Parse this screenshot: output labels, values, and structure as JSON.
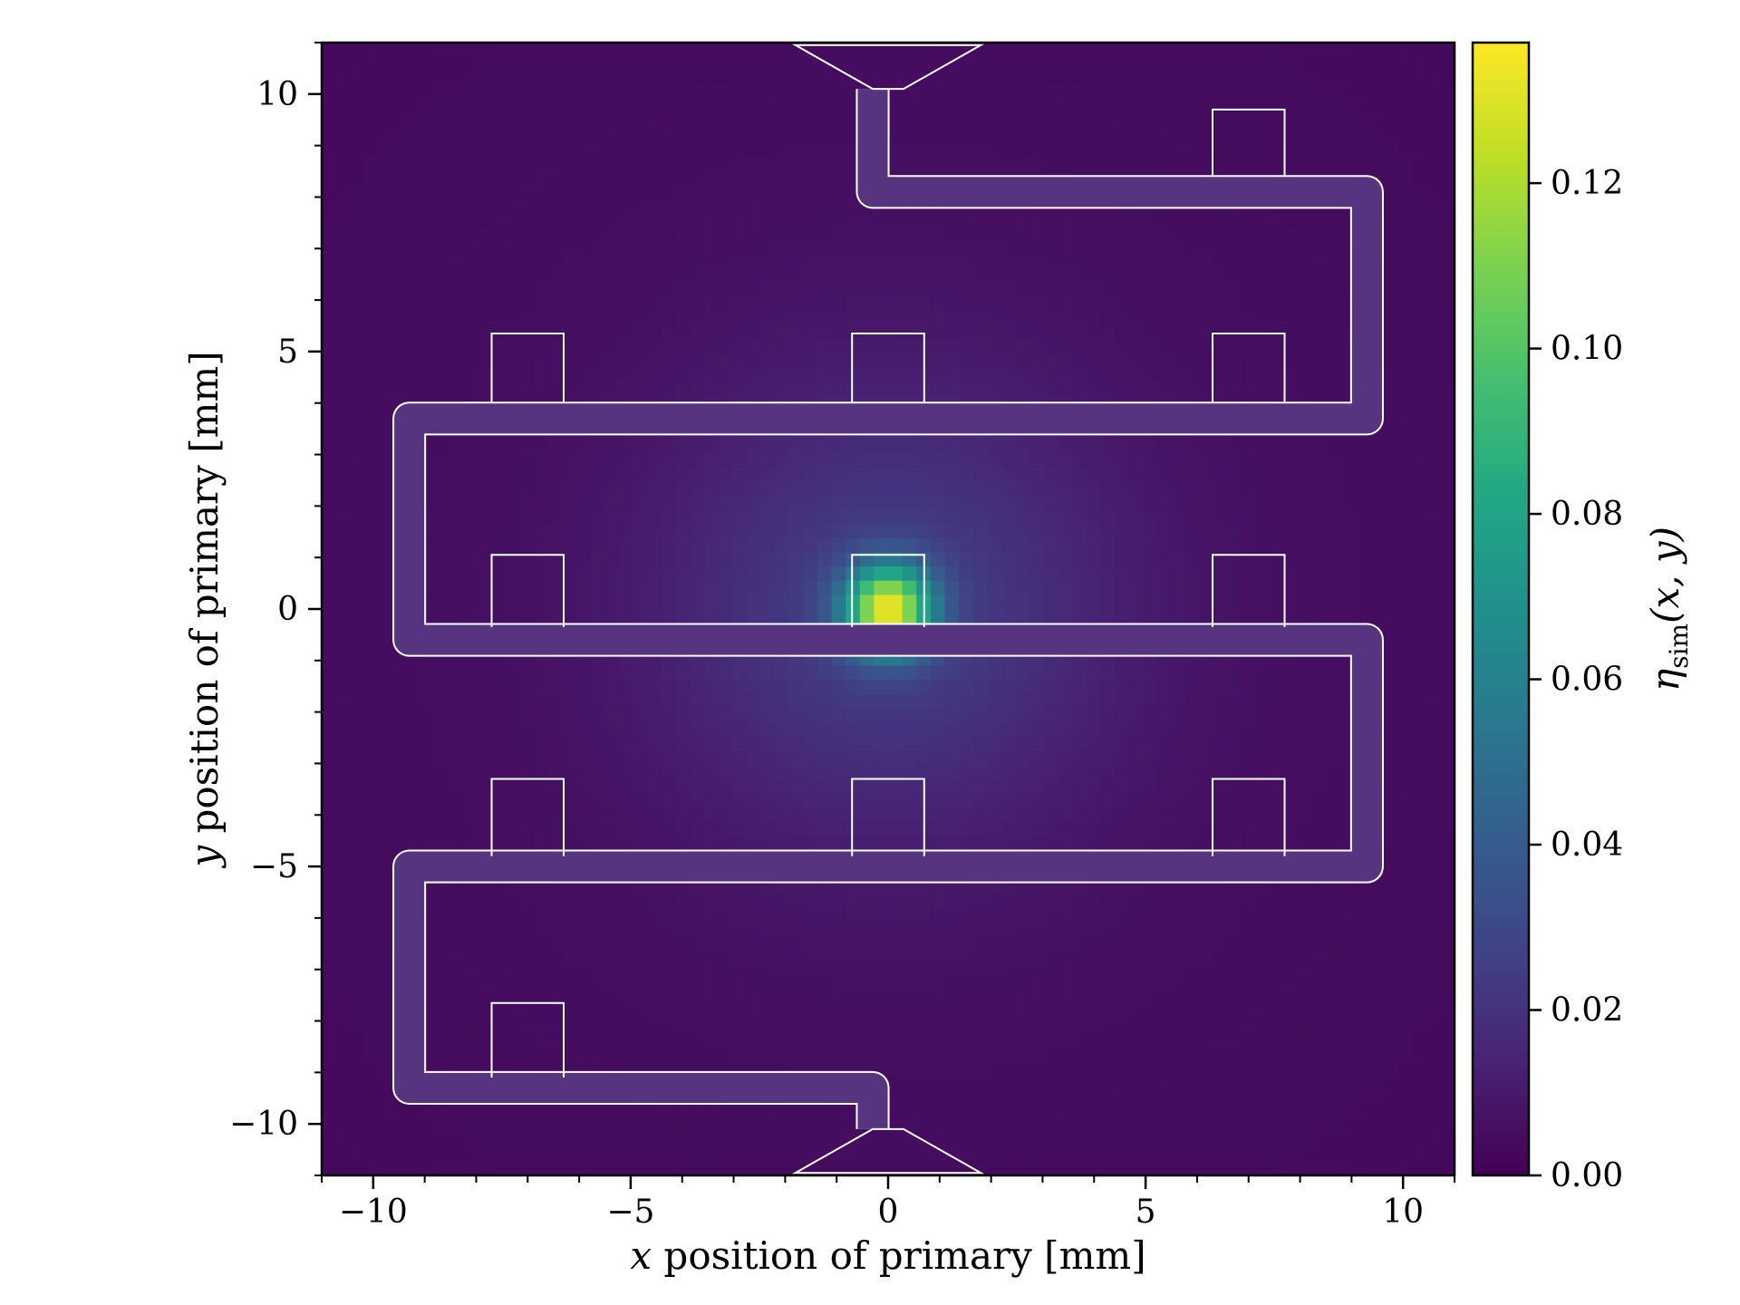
{
  "chart_data": {
    "type": "heatmap",
    "title": "",
    "xlabel": {
      "var": "x",
      "text": " position of primary [mm]"
    },
    "ylabel": {
      "var": "y",
      "text": " position of primary [mm]"
    },
    "xlim": [
      -11,
      11
    ],
    "ylim": [
      -11,
      11
    ],
    "x_ticks": [
      -10,
      -5,
      0,
      5,
      10
    ],
    "x_tick_labels": [
      "−10",
      "−5",
      "0",
      "5",
      "10"
    ],
    "y_ticks": [
      -10,
      -5,
      0,
      5,
      10
    ],
    "y_tick_labels": [
      "−10",
      "−5",
      "0",
      "5",
      "10"
    ],
    "minor_tick_step": 1,
    "colormap": "viridis",
    "colorbar": {
      "label": {
        "eta": "η",
        "sub": "sim",
        "args": "(x, y)"
      },
      "range": [
        0,
        0.137
      ],
      "ticks": [
        0,
        0.02,
        0.04,
        0.06,
        0.08,
        0.1,
        0.12
      ],
      "tick_labels": [
        "0.00",
        "0.02",
        "0.04",
        "0.06",
        "0.08",
        "0.10",
        "0.12"
      ]
    },
    "field": {
      "grid_bins": 80,
      "peak_center": [
        0,
        0
      ],
      "components": [
        {
          "amplitude": 0.11,
          "sigma_mm": 0.6
        },
        {
          "amplitude": 0.02,
          "sigma_mm": 3.0
        },
        {
          "amplitude": 0.006,
          "sigma_mm": 14.0
        }
      ]
    },
    "overlay": {
      "description": "meander detector outline",
      "color": "#ffffff",
      "path_mm": [
        [
          -0.3,
          10.1
        ],
        [
          -0.3,
          8.1
        ],
        [
          9.3,
          8.1
        ],
        [
          9.3,
          3.7
        ],
        [
          -9.3,
          3.7
        ],
        [
          -9.3,
          -0.6
        ],
        [
          9.3,
          -0.6
        ],
        [
          9.3,
          -5.0
        ],
        [
          -9.3,
          -5.0
        ],
        [
          -9.3,
          -9.3
        ],
        [
          -0.3,
          -9.3
        ],
        [
          -0.3,
          -10.1
        ]
      ],
      "trace_width_mm": 0.6,
      "funnel_top": {
        "neck_y": 10.1,
        "y_top": 10.95,
        "half_width": 1.8
      },
      "funnel_bottom": {
        "neck_y": -10.1,
        "y_bottom": -10.95,
        "half_width": 1.8
      },
      "pads": [
        {
          "x": 7.0,
          "y_base": 8.4,
          "y_top": 9.7
        },
        {
          "x": -7.0,
          "y_base": 4.0,
          "y_top": 5.35
        },
        {
          "x": 0.0,
          "y_base": 4.0,
          "y_top": 5.35
        },
        {
          "x": 7.0,
          "y_base": 4.0,
          "y_top": 5.35
        },
        {
          "x": -7.0,
          "y_base": -0.35,
          "y_top": 1.05
        },
        {
          "x": 0.0,
          "y_base": -0.35,
          "y_top": 1.05
        },
        {
          "x": 7.0,
          "y_base": -0.35,
          "y_top": 1.05
        },
        {
          "x": -7.0,
          "y_base": -4.8,
          "y_top": -3.3
        },
        {
          "x": 0.0,
          "y_base": -4.8,
          "y_top": -3.3
        },
        {
          "x": 7.0,
          "y_base": -4.8,
          "y_top": -3.3
        },
        {
          "x": -7.0,
          "y_base": -9.1,
          "y_top": -7.65
        }
      ],
      "pad_width_mm": 1.4
    }
  }
}
